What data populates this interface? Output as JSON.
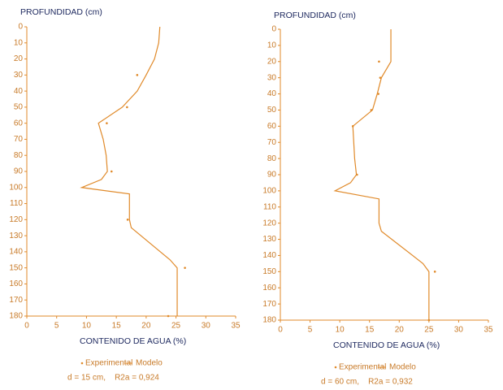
{
  "chart_data": [
    {
      "type": "line",
      "title": "PROFUNDIDAD (cm)",
      "x_label": "CONTENIDO DE AGUA (%)",
      "note": "d = 15 cm,    R2a = 0,924",
      "xlim": [
        0,
        35
      ],
      "xticks": [
        0,
        5,
        10,
        15,
        20,
        25,
        30,
        35
      ],
      "ylim": [
        0,
        180
      ],
      "yticks": [
        0,
        10,
        20,
        30,
        40,
        50,
        60,
        70,
        80,
        90,
        100,
        110,
        120,
        130,
        140,
        150,
        160,
        170,
        180
      ],
      "y_inverted": true,
      "series": [
        {
          "name": "Experimental",
          "color": "#e08a2a",
          "style": "markers",
          "x": [
            18.5,
            16.8,
            13.4,
            14.2,
            16.9,
            26.5,
            23.7
          ],
          "values": [
            30,
            50,
            60,
            90,
            120,
            150,
            180
          ]
        },
        {
          "name": "Modelo",
          "color": "#e08a2a",
          "style": "line",
          "x": [
            22.3,
            22.1,
            21.4,
            20.0,
            18.5,
            16.0,
            12.0,
            12.8,
            13.3,
            13.5,
            12.5,
            9.2,
            17.2,
            17.2,
            17.5,
            24.0,
            25.2,
            25.2
          ],
          "values": [
            0,
            10,
            20,
            30,
            40,
            50,
            60,
            70,
            80,
            90,
            95,
            100,
            104,
            120,
            125,
            145,
            150,
            180
          ]
        }
      ]
    },
    {
      "type": "line",
      "title": "PROFUNDIDAD (cm)",
      "x_label": "CONTENIDO DE AGUA (%)",
      "note": "d = 60 cm,    R2a = 0,932",
      "xlim": [
        0,
        35
      ],
      "xticks": [
        0,
        5,
        10,
        15,
        20,
        25,
        30,
        35
      ],
      "ylim": [
        0,
        180
      ],
      "yticks": [
        0,
        10,
        20,
        30,
        40,
        50,
        60,
        70,
        80,
        90,
        100,
        110,
        120,
        130,
        140,
        150,
        160,
        170,
        180
      ],
      "y_inverted": true,
      "series": [
        {
          "name": "Experimental",
          "color": "#e08a2a",
          "style": "markers",
          "x": [
            16.6,
            16.8,
            16.5,
            15.3,
            12.2,
            12.9,
            26.0,
            25.0
          ],
          "values": [
            20,
            30,
            40,
            50,
            60,
            90,
            150,
            180
          ]
        },
        {
          "name": "Modelo",
          "color": "#e08a2a",
          "style": "line",
          "x": [
            18.6,
            18.6,
            18.6,
            17.0,
            16.3,
            15.5,
            12.2,
            12.5,
            12.8,
            11.8,
            9.2,
            16.6,
            16.6,
            17.0,
            24.0,
            25.0,
            25.0
          ],
          "values": [
            0,
            10,
            20,
            30,
            40,
            50,
            60,
            80,
            90,
            95,
            100,
            105,
            120,
            125,
            145,
            150,
            180
          ]
        }
      ]
    }
  ]
}
